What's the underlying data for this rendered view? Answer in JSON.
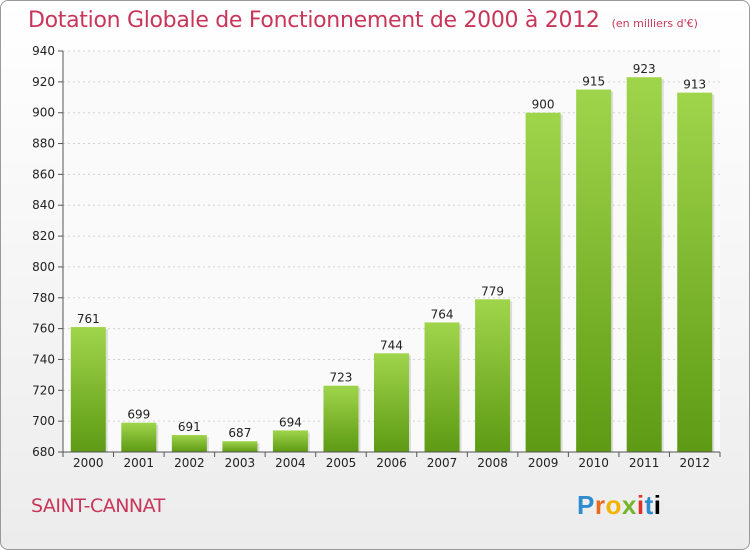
{
  "chart_data": {
    "type": "bar",
    "title": "Dotation Globale de Fonctionnement de 2000 à 2012",
    "unit": "(en milliers d'€)",
    "categories": [
      "2000",
      "2001",
      "2002",
      "2003",
      "2004",
      "2005",
      "2006",
      "2007",
      "2008",
      "2009",
      "2010",
      "2011",
      "2012"
    ],
    "values": [
      761,
      699,
      691,
      687,
      694,
      723,
      744,
      764,
      779,
      900,
      915,
      923,
      913
    ],
    "ylim": [
      680,
      940
    ],
    "yticks": [
      680,
      700,
      720,
      740,
      760,
      780,
      800,
      820,
      840,
      860,
      880,
      900,
      920,
      940
    ],
    "grid": true,
    "bar_color": "#8dc63f"
  },
  "commune": "SAINT-CANNAT",
  "logo": [
    "P",
    "r",
    "o",
    "x",
    "i",
    "t",
    "i"
  ]
}
